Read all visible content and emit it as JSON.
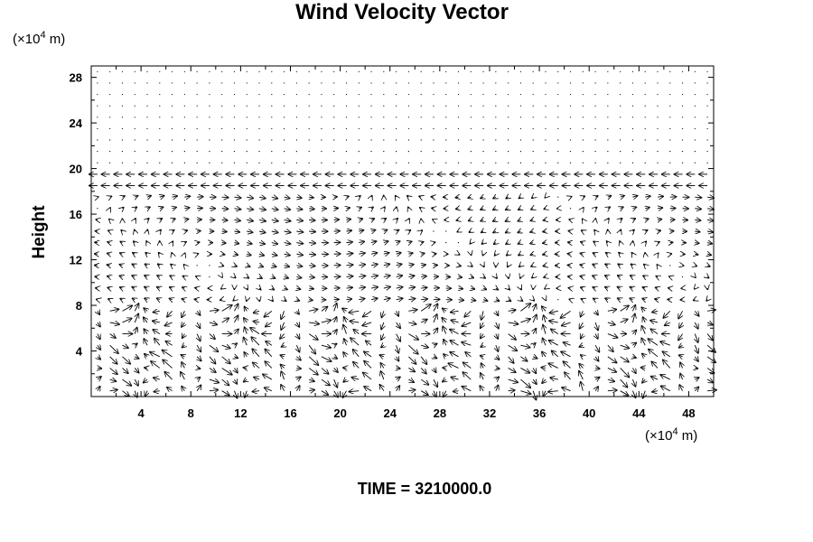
{
  "chart_data": {
    "type": "vector",
    "title": "Wind Velocity Vector",
    "ylabel": "Height",
    "xlabel": "",
    "x_unit": {
      "prefix": "(×10",
      "exp": "4",
      "suffix": " m)"
    },
    "y_unit": {
      "prefix": "(×10",
      "exp": "4",
      "suffix": " m)"
    },
    "time_label": "TIME = 3210000.0",
    "xlim": [
      0,
      50
    ],
    "ylim": [
      0,
      29
    ],
    "x_ticks": [
      "4",
      "8",
      "12",
      "16",
      "20",
      "24",
      "28",
      "32",
      "36",
      "40",
      "44",
      "48"
    ],
    "y_ticks": [
      "4",
      "8",
      "12",
      "16",
      "20",
      "24",
      "28"
    ],
    "x_tick_values": [
      4,
      8,
      12,
      16,
      20,
      24,
      28,
      32,
      36,
      40,
      44,
      48
    ],
    "y_tick_values": [
      4,
      8,
      12,
      16,
      20,
      24,
      28
    ],
    "grid": false,
    "arrow_color": "#000000",
    "rows": [
      {
        "y": 19,
        "u": -0.9,
        "v": 0
      },
      {
        "y": 20,
        "u": -0.8,
        "v": 0
      },
      {
        "y": 16,
        "u": 0.4,
        "v": 0
      },
      {
        "y": 12,
        "u": 0.5,
        "v": 0
      }
    ]
  }
}
